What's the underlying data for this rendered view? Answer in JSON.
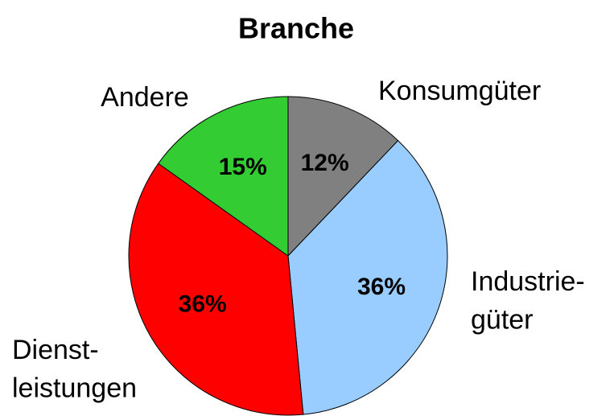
{
  "chart_data": {
    "type": "pie",
    "title": "Branche",
    "categories": [
      "Konsumgüter",
      "Industrie-\ngüter",
      "Dienst-\nleistungen",
      "Andere"
    ],
    "values": [
      12,
      36,
      36,
      15
    ],
    "value_labels": [
      "12%",
      "36%",
      "36%",
      "15%"
    ],
    "colors": [
      "#808080",
      "#99ccff",
      "#ff0000",
      "#33cc33"
    ]
  }
}
